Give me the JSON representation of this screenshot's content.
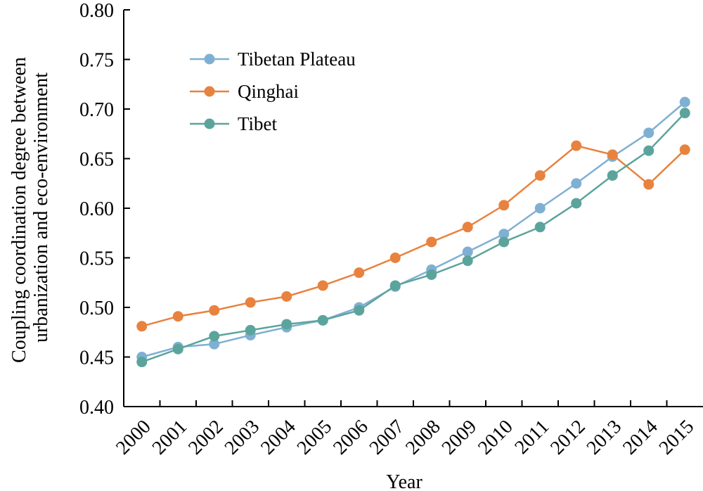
{
  "chart_data": {
    "type": "line",
    "x": [
      "2000",
      "2001",
      "2002",
      "2003",
      "2004",
      "2005",
      "2006",
      "2007",
      "2008",
      "2009",
      "2010",
      "2011",
      "2012",
      "2013",
      "2014",
      "2015"
    ],
    "series": [
      {
        "name": "Tibetan Plateau",
        "color": "#7fb0d3",
        "values": [
          0.45,
          0.46,
          0.463,
          0.472,
          0.48,
          0.487,
          0.5,
          0.521,
          0.538,
          0.556,
          0.574,
          0.6,
          0.625,
          0.652,
          0.676,
          0.707
        ]
      },
      {
        "name": "Qinghai",
        "color": "#e8823f",
        "values": [
          0.481,
          0.491,
          0.497,
          0.505,
          0.511,
          0.522,
          0.535,
          0.55,
          0.566,
          0.581,
          0.603,
          0.633,
          0.663,
          0.654,
          0.624,
          0.659
        ]
      },
      {
        "name": "Tibet",
        "color": "#5ba49c",
        "values": [
          0.445,
          0.458,
          0.471,
          0.477,
          0.483,
          0.487,
          0.497,
          0.522,
          0.533,
          0.547,
          0.566,
          0.581,
          0.605,
          0.633,
          0.658,
          0.696
        ]
      }
    ],
    "xlabel": "Year",
    "ylabel": [
      "Coupling coordination degree between",
      "urbanization and eco-environment"
    ],
    "ylim": [
      0.4,
      0.8
    ],
    "yticks": [
      "0.40",
      "0.45",
      "0.50",
      "0.55",
      "0.60",
      "0.65",
      "0.70",
      "0.75",
      "0.80"
    ],
    "grid": false,
    "legend_position": "upper-left"
  }
}
